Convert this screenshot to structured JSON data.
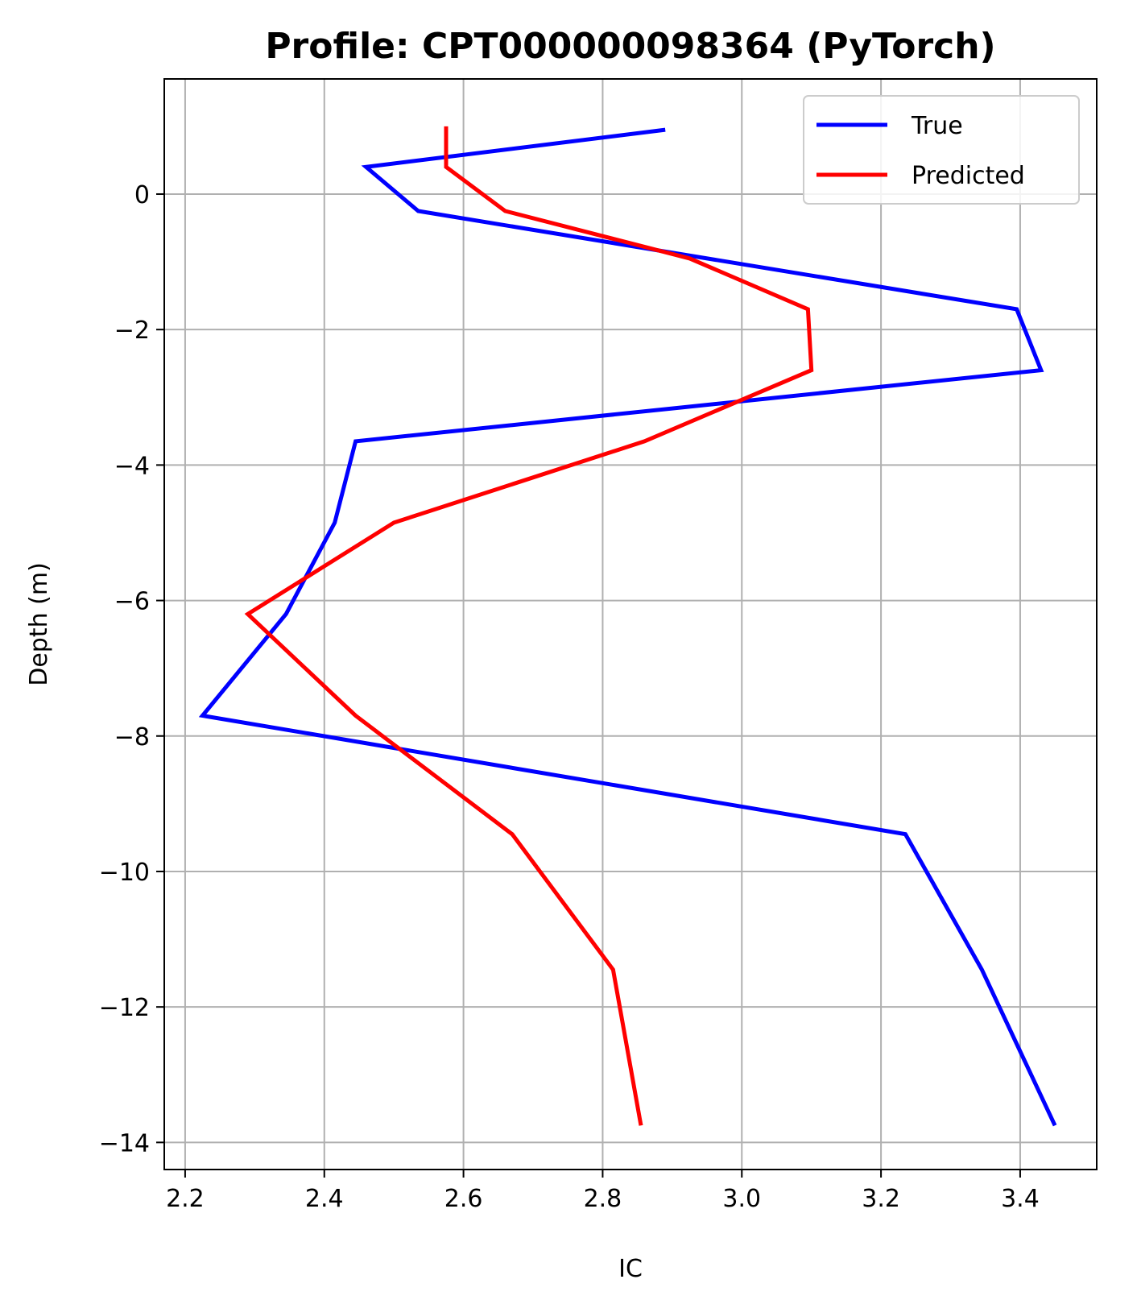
{
  "chart_data": {
    "type": "line",
    "title": "Profile: CPT000000098364 (PyTorch)",
    "xlabel": "IC",
    "ylabel": "Depth (m)",
    "xlim": [
      2.17,
      3.51
    ],
    "ylim": [
      -14.4,
      1.7
    ],
    "xticks": [
      2.2,
      2.4,
      2.6,
      2.8,
      3.0,
      3.2,
      3.4
    ],
    "xtick_labels": [
      "2.2",
      "2.4",
      "2.6",
      "2.8",
      "3.0",
      "3.2",
      "3.4"
    ],
    "yticks": [
      0,
      -2,
      -4,
      -6,
      -8,
      -10,
      -12,
      -14
    ],
    "ytick_labels": [
      "0",
      "−2",
      "−4",
      "−6",
      "−8",
      "−10",
      "−12",
      "−14"
    ],
    "grid": true,
    "legend_position": "top-right",
    "series": [
      {
        "name": "True",
        "color": "#0000ff",
        "x": [
          2.89,
          2.46,
          2.535,
          3.395,
          3.43,
          2.445,
          2.415,
          2.345,
          2.225,
          3.235,
          3.345,
          3.45
        ],
        "y": [
          0.95,
          0.4,
          -0.25,
          -1.7,
          -2.6,
          -3.65,
          -4.85,
          -6.2,
          -7.7,
          -9.45,
          -11.45,
          -13.75
        ]
      },
      {
        "name": "Predicted",
        "color": "#ff0000",
        "x": [
          2.575,
          2.575,
          2.66,
          2.925,
          3.095,
          3.1,
          2.86,
          2.5,
          2.29,
          2.445,
          2.67,
          2.815,
          2.855
        ],
        "y": [
          1.0,
          0.4,
          -0.25,
          -0.95,
          -1.7,
          -2.6,
          -3.65,
          -4.85,
          -6.2,
          -7.7,
          -9.45,
          -11.45,
          -13.75
        ]
      }
    ]
  }
}
